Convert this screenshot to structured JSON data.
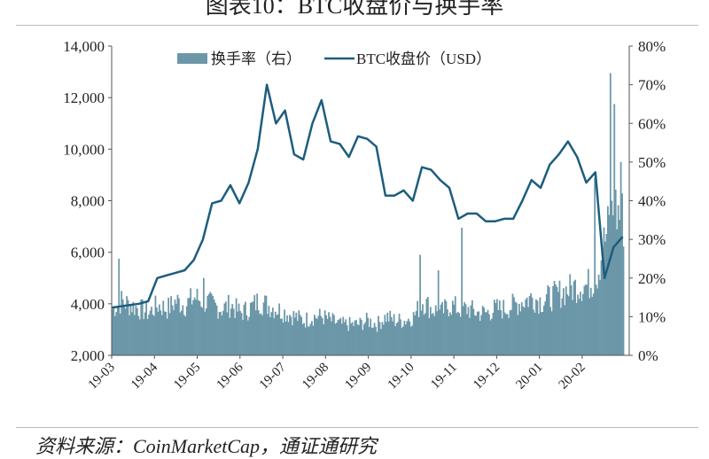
{
  "title": "图表10：BTC收盘价与换手率",
  "source": "资料来源：CoinMarketCap，通证通研究",
  "chart_data": {
    "type": "bar+line",
    "legend": [
      "换手率（右）",
      "BTC收盘价（USD）"
    ],
    "legend_position": "top",
    "y_left": {
      "range": [
        2000,
        14000
      ],
      "ticks": [
        "2,000",
        "4,000",
        "6,000",
        "8,000",
        "10,000",
        "12,000",
        "14,000"
      ]
    },
    "y_right": {
      "range": [
        0,
        80
      ],
      "ticks": [
        "0%",
        "10%",
        "20%",
        "30%",
        "40%",
        "50%",
        "60%",
        "70%",
        "80%"
      ]
    },
    "x_ticks": [
      "19-03",
      "19-04",
      "19-05",
      "19-06",
      "19-07",
      "19-08",
      "19-09",
      "19-10",
      "19-11",
      "19-12",
      "20-01",
      "20-02"
    ],
    "x_start": "2019-03-01",
    "interval_days": 7,
    "price": [
      3850,
      3900,
      3950,
      4000,
      4100,
      5000,
      5100,
      5200,
      5300,
      5700,
      6500,
      7900,
      8000,
      8600,
      7900,
      8700,
      10000,
      12500,
      11000,
      11500,
      9800,
      9600,
      11000,
      11900,
      10300,
      10200,
      9700,
      10500,
      10400,
      10100,
      8200,
      8200,
      8400,
      8000,
      9300,
      9200,
      8800,
      8500,
      7300,
      7500,
      7500,
      7200,
      7200,
      7300,
      7300,
      8000,
      8800,
      8500,
      9400,
      9800,
      10300,
      9700,
      8700,
      9100,
      5000,
      6200,
      6600
    ],
    "turnover_pct": [
      12,
      14,
      13,
      12,
      11,
      13,
      12,
      14,
      13,
      15,
      14,
      13,
      12,
      13,
      11,
      12,
      14,
      13,
      12,
      11,
      10,
      9,
      10,
      10,
      9,
      8,
      8,
      8,
      9,
      8,
      10,
      9,
      9,
      10,
      14,
      12,
      11,
      13,
      12,
      12,
      11,
      11,
      12,
      12,
      13,
      14,
      15,
      14,
      15,
      16,
      17,
      18,
      18,
      20,
      30,
      38,
      35
    ],
    "turnover_spikes": [
      {
        "day": 5,
        "value": 25
      },
      {
        "day": 70,
        "value": 20
      },
      {
        "day": 236,
        "value": 26
      },
      {
        "day": 250,
        "value": 22
      },
      {
        "day": 268,
        "value": 33
      },
      {
        "day": 370,
        "value": 46
      },
      {
        "day": 382,
        "value": 73
      },
      {
        "day": 385,
        "value": 65
      },
      {
        "day": 390,
        "value": 50
      }
    ],
    "colors": {
      "bar": "#6b97a8",
      "line": "#1d5d7e"
    }
  }
}
